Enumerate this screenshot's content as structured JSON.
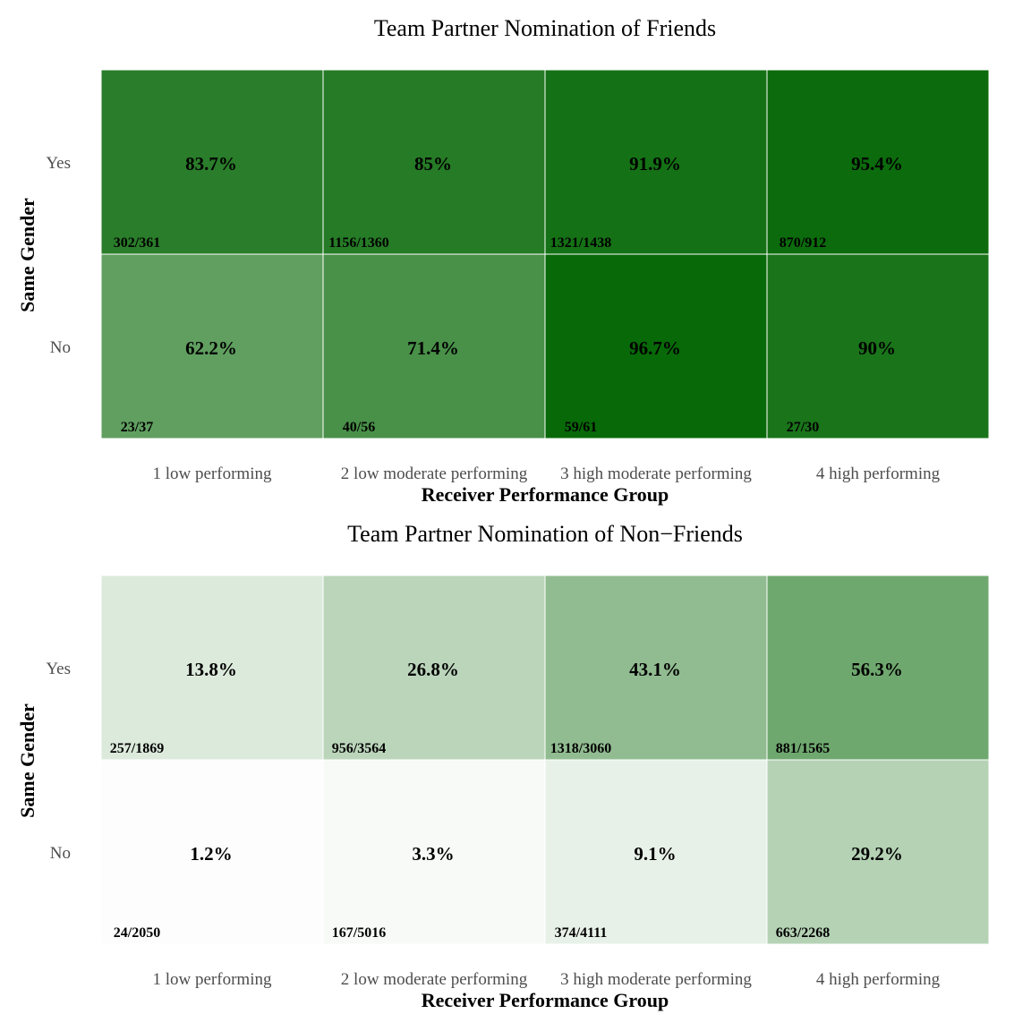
{
  "chart_data": [
    {
      "type": "heatmap",
      "title": "Team Partner Nomination of Friends",
      "xlabel": "Receiver Performance Group",
      "ylabel": "Same Gender",
      "x_categories": [
        "1 low performing",
        "2 low moderate performing",
        "3 high moderate performing",
        "4 high performing"
      ],
      "y_categories": [
        "Yes",
        "No"
      ],
      "color_low": "#ffffff",
      "color_high": "#006400",
      "cells": [
        {
          "y": "Yes",
          "x": "1 low performing",
          "value": 83.7,
          "label": "83.7%",
          "count": "302/361"
        },
        {
          "y": "Yes",
          "x": "2 low moderate performing",
          "value": 85,
          "label": "85%",
          "count": "1156/1360"
        },
        {
          "y": "Yes",
          "x": "3 high moderate performing",
          "value": 91.9,
          "label": "91.9%",
          "count": "1321/1438"
        },
        {
          "y": "Yes",
          "x": "4 high performing",
          "value": 95.4,
          "label": "95.4%",
          "count": "870/912"
        },
        {
          "y": "No",
          "x": "1 low performing",
          "value": 62.2,
          "label": "62.2%",
          "count": "23/37"
        },
        {
          "y": "No",
          "x": "2 low moderate performing",
          "value": 71.4,
          "label": "71.4%",
          "count": "40/56"
        },
        {
          "y": "No",
          "x": "3 high moderate performing",
          "value": 96.7,
          "label": "96.7%",
          "count": "59/61"
        },
        {
          "y": "No",
          "x": "4 high performing",
          "value": 90,
          "label": "90%",
          "count": "27/30"
        }
      ]
    },
    {
      "type": "heatmap",
      "title": "Team Partner Nomination of Non−Friends",
      "xlabel": "Receiver Performance Group",
      "ylabel": "Same Gender",
      "x_categories": [
        "1 low performing",
        "2 low moderate performing",
        "3 high moderate performing",
        "4 high performing"
      ],
      "y_categories": [
        "Yes",
        "No"
      ],
      "color_low": "#ffffff",
      "color_high": "#006400",
      "cells": [
        {
          "y": "Yes",
          "x": "1 low performing",
          "value": 13.8,
          "label": "13.8%",
          "count": "257/1869"
        },
        {
          "y": "Yes",
          "x": "2 low moderate performing",
          "value": 26.8,
          "label": "26.8%",
          "count": "956/3564"
        },
        {
          "y": "Yes",
          "x": "3 high moderate performing",
          "value": 43.1,
          "label": "43.1%",
          "count": "1318/3060"
        },
        {
          "y": "Yes",
          "x": "4 high performing",
          "value": 56.3,
          "label": "56.3%",
          "count": "881/1565"
        },
        {
          "y": "No",
          "x": "1 low performing",
          "value": 1.2,
          "label": "1.2%",
          "count": "24/2050"
        },
        {
          "y": "No",
          "x": "2 low moderate performing",
          "value": 3.3,
          "label": "3.3%",
          "count": "167/5016"
        },
        {
          "y": "No",
          "x": "3 high moderate performing",
          "value": 9.1,
          "label": "9.1%",
          "count": "374/4111"
        },
        {
          "y": "No",
          "x": "4 high performing",
          "value": 29.2,
          "label": "29.2%",
          "count": "663/2268"
        }
      ]
    }
  ]
}
